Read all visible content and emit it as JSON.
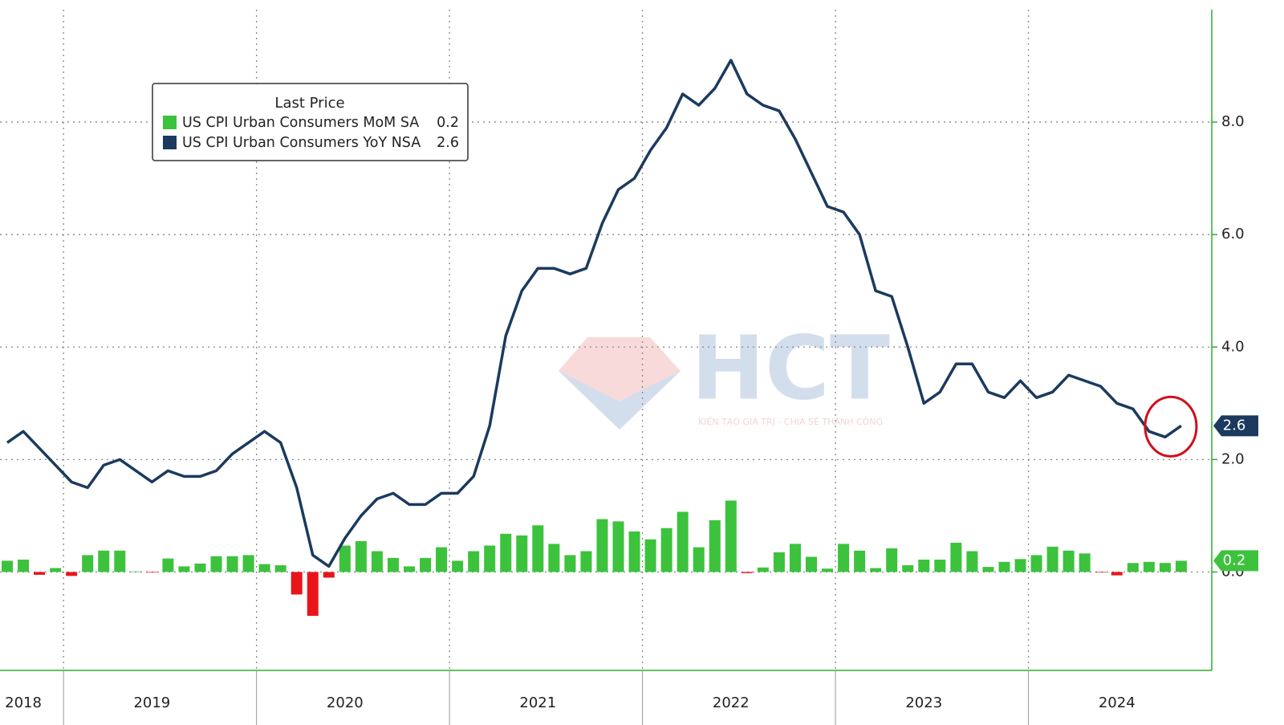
{
  "chart_data": {
    "type": "combo",
    "legend_title": "Last Price",
    "legend": "upper left",
    "grid": true,
    "categories": [
      null,
      "2018",
      null,
      null,
      null,
      null,
      null,
      null,
      null,
      "2019",
      null,
      null,
      null,
      null,
      null,
      null,
      null,
      null,
      null,
      null,
      null,
      "2020",
      null,
      null,
      null,
      null,
      null,
      null,
      null,
      null,
      null,
      null,
      null,
      "2021",
      null,
      null,
      null,
      null,
      null,
      null,
      null,
      null,
      null,
      null,
      null,
      "2022",
      null,
      null,
      null,
      null,
      null,
      null,
      null,
      null,
      null,
      null,
      null,
      "2023",
      null,
      null,
      null,
      null,
      null,
      null,
      null,
      null,
      null,
      null,
      null,
      "2024",
      null,
      null,
      null,
      null
    ],
    "series": [
      {
        "name": "US CPI Urban Consumers MoM SA",
        "type": "bar",
        "color": "#3dc23d",
        "negative_color": "#e8161b",
        "values": [
          0.2,
          0.22,
          -0.05,
          0.07,
          -0.07,
          0.3,
          0.38,
          0.38,
          0.01,
          -0.01,
          0.24,
          0.1,
          0.15,
          0.28,
          0.28,
          0.3,
          0.14,
          0.12,
          -0.4,
          -0.78,
          -0.1,
          0.47,
          0.55,
          0.37,
          0.25,
          0.1,
          0.25,
          0.44,
          0.2,
          0.37,
          0.47,
          0.68,
          0.65,
          0.83,
          0.5,
          0.3,
          0.37,
          0.94,
          0.9,
          0.72,
          0.58,
          0.78,
          1.07,
          0.44,
          0.92,
          1.27,
          -0.02,
          0.08,
          0.35,
          0.5,
          0.27,
          0.06,
          0.5,
          0.38,
          0.07,
          0.42,
          0.12,
          0.22,
          0.22,
          0.52,
          0.37,
          0.09,
          0.18,
          0.23,
          0.3,
          0.45,
          0.38,
          0.33,
          -0.01,
          -0.06,
          0.16,
          0.18,
          0.16,
          0.2
        ]
      },
      {
        "name": "US CPI Urban Consumers YoY NSA",
        "type": "line",
        "color": "#1b3a5e",
        "values": [
          2.3,
          2.5,
          2.2,
          1.9,
          1.6,
          1.5,
          1.9,
          2.0,
          1.8,
          1.6,
          1.8,
          1.7,
          1.7,
          1.8,
          2.1,
          2.3,
          2.5,
          2.3,
          1.5,
          0.3,
          0.1,
          0.6,
          1.0,
          1.3,
          1.4,
          1.2,
          1.2,
          1.4,
          1.4,
          1.7,
          2.6,
          4.2,
          5.0,
          5.4,
          5.4,
          5.3,
          5.4,
          6.2,
          6.8,
          7.0,
          7.5,
          7.9,
          8.5,
          8.3,
          8.6,
          9.1,
          8.5,
          8.3,
          8.2,
          7.7,
          7.1,
          6.5,
          6.4,
          6.0,
          5.0,
          4.9,
          4.0,
          3.0,
          3.2,
          3.7,
          3.7,
          3.2,
          3.1,
          3.4,
          3.1,
          3.2,
          3.5,
          3.4,
          3.3,
          3.0,
          2.9,
          2.5,
          2.4,
          2.6
        ]
      }
    ],
    "ylim": [
      -1.75,
      10
    ],
    "yticks": [
      {
        "value": 0,
        "label": "0.0"
      },
      {
        "value": 2,
        "label": "2.0"
      },
      {
        "value": 4,
        "label": "4.0"
      },
      {
        "value": 6,
        "label": "6.0"
      },
      {
        "value": 8,
        "label": "8.0"
      }
    ],
    "watermark": {
      "title": "HCT",
      "subtitle": "KIẾN TẠO GIÁ TRỊ - CHIA SẺ THÀNH CÔNG"
    }
  }
}
